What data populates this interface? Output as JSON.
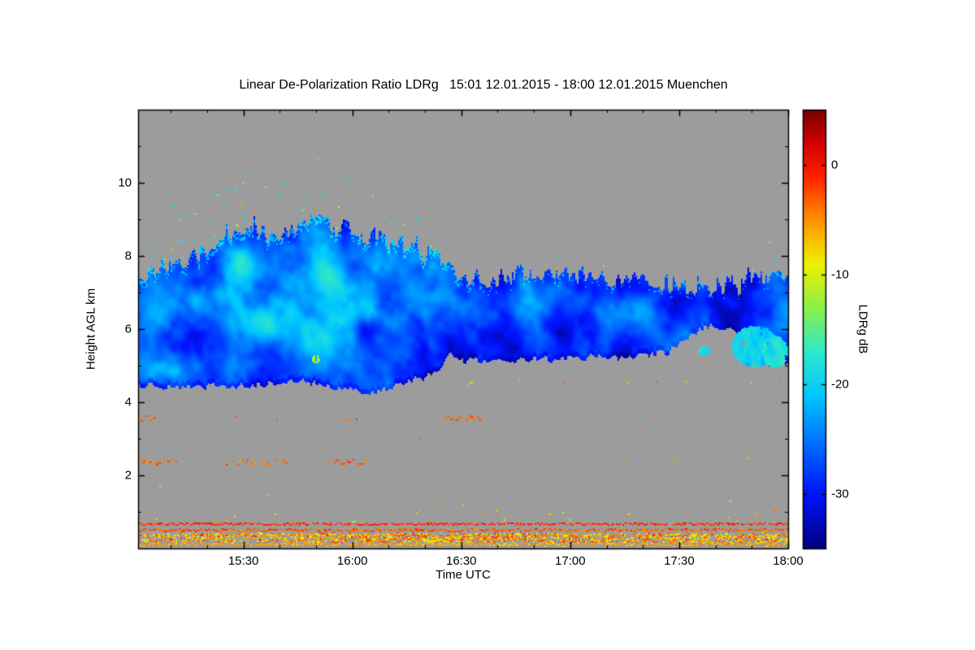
{
  "chart_data": {
    "type": "heatmap",
    "title": "Linear De-Polarization Ratio LDRg   15:01 12.01.2015 - 18:00 12.01.2015 Muenchen",
    "xlabel": "Time UTC",
    "ylabel": "Height AGL km",
    "x_ticks": [
      "15:30",
      "16:00",
      "16:30",
      "17:00",
      "17:30",
      "18:00"
    ],
    "x_ticks_minutes": [
      930,
      960,
      990,
      1020,
      1050,
      1080
    ],
    "x_start_minute": 901,
    "x_end_minute": 1080,
    "y_ticks": [
      2,
      4,
      6,
      8,
      10
    ],
    "ylim": [
      0,
      12
    ],
    "grid": false,
    "background_color": "#9c9c9c",
    "colorbar": {
      "label": "LDRg dB",
      "ticks": [
        0,
        -10,
        -20,
        -30
      ],
      "range": [
        -35,
        5
      ],
      "stops": [
        [
          -35,
          "#000082"
        ],
        [
          -30,
          "#0014ff"
        ],
        [
          -26,
          "#0064ff"
        ],
        [
          -21,
          "#00c8ff"
        ],
        [
          -17,
          "#30e8c8"
        ],
        [
          -13,
          "#8cf046"
        ],
        [
          -9,
          "#f0f000"
        ],
        [
          -5,
          "#ff9000"
        ],
        [
          -1,
          "#ff2000"
        ],
        [
          2,
          "#d20000"
        ],
        [
          5,
          "#780000"
        ]
      ]
    },
    "features": {
      "cloud": {
        "description": "Ice cloud layer 4.4-9 km, LDRg mostly -33 to -24 dB (blue) with cyan streaks near -19 dB",
        "mean_ldr_db": -28.5,
        "texture_amplitude_db": 7,
        "value_clamp_db": [
          -34,
          -15
        ],
        "top_profile_km": [
          [
            0,
            7.35
          ],
          [
            8,
            7.7
          ],
          [
            16,
            8.0
          ],
          [
            24,
            8.35
          ],
          [
            32,
            8.55
          ],
          [
            40,
            8.65
          ],
          [
            48,
            8.9
          ],
          [
            56,
            8.7
          ],
          [
            62,
            8.55
          ],
          [
            70,
            8.35
          ],
          [
            78,
            8.1
          ],
          [
            84,
            7.8
          ],
          [
            90,
            7.45
          ],
          [
            96,
            7.3
          ],
          [
            104,
            7.45
          ],
          [
            112,
            7.35
          ],
          [
            120,
            7.45
          ],
          [
            128,
            7.3
          ],
          [
            136,
            7.35
          ],
          [
            144,
            7.2
          ],
          [
            152,
            7.15
          ],
          [
            160,
            7.1
          ],
          [
            168,
            7.2
          ],
          [
            174,
            7.35
          ],
          [
            179,
            7.4
          ]
        ],
        "base_profile_km": [
          [
            0,
            4.45
          ],
          [
            10,
            4.4
          ],
          [
            20,
            4.42
          ],
          [
            30,
            4.45
          ],
          [
            40,
            4.5
          ],
          [
            46,
            4.55
          ],
          [
            52,
            4.4
          ],
          [
            58,
            4.35
          ],
          [
            62,
            4.25
          ],
          [
            66,
            4.3
          ],
          [
            72,
            4.5
          ],
          [
            78,
            4.65
          ],
          [
            82,
            4.75
          ],
          [
            86,
            5.3
          ],
          [
            89,
            5.1
          ],
          [
            94,
            5.15
          ],
          [
            100,
            5.1
          ],
          [
            108,
            5.18
          ],
          [
            116,
            5.15
          ],
          [
            124,
            5.22
          ],
          [
            132,
            5.2
          ],
          [
            140,
            5.28
          ],
          [
            146,
            5.35
          ],
          [
            152,
            5.85
          ],
          [
            158,
            6.1
          ],
          [
            163,
            6.0
          ],
          [
            167,
            5.75
          ],
          [
            170,
            5.2
          ],
          [
            174,
            5.05
          ],
          [
            179,
            5.1
          ]
        ],
        "bright_patches": [
          [
            3,
            6.0,
            6,
            1.0,
            6
          ],
          [
            4,
            4.9,
            5,
            0.5,
            5
          ],
          [
            30,
            7.8,
            9,
            0.7,
            4.5
          ],
          [
            38,
            6.4,
            20,
            1.3,
            5
          ],
          [
            40,
            6.5,
            38,
            1.8,
            2
          ],
          [
            48,
            5.6,
            10,
            0.7,
            3.5
          ],
          [
            55,
            7.4,
            12,
            0.9,
            4.5
          ],
          [
            68,
            7.9,
            7,
            0.5,
            4
          ],
          [
            75,
            6.2,
            9,
            0.9,
            3.5
          ],
          [
            90,
            6.9,
            8,
            0.8,
            2.5
          ],
          [
            118,
            6.7,
            22,
            0.6,
            2.2
          ],
          [
            171,
            5.55,
            7,
            0.5,
            7
          ]
        ],
        "top_fringe": {
          "prob_early": 0.45,
          "prob_late": 0.15,
          "switch_min": 95,
          "boost_db": 5.5
        },
        "above_top_specks": {
          "prob": [
            [
              0,
              20,
              0.22
            ],
            [
              20,
              60,
              0.38
            ],
            [
              60,
              90,
              0.22
            ],
            [
              90,
              179,
              0.07
            ]
          ],
          "max_offset_km": 1.4
        }
      },
      "islands": [
        [
          49,
          5.15,
          1.0,
          0.1,
          -12
        ],
        [
          156,
          5.38,
          1.5,
          0.13,
          -19
        ],
        [
          170,
          5.5,
          6.5,
          0.55,
          -20
        ],
        [
          175.5,
          5.35,
          3.5,
          0.42,
          -18
        ]
      ],
      "speckle_layers": [
        {
          "name": "surface-clutter-line",
          "h": [
            0.04,
            0.12
          ],
          "density": 0.99,
          "v": [
            -8,
            -4
          ]
        },
        {
          "name": "boundary-layer-aerosol-band",
          "h": [
            0.13,
            0.38
          ],
          "multi": true,
          "density": 1,
          "v": [
            -11,
            -1
          ]
        },
        {
          "name": "interference-line-0.45km",
          "h": [
            0.43,
            0.5
          ],
          "density": 0.93,
          "v": [
            -5,
            -1
          ]
        },
        {
          "name": "interference-line-0.62km",
          "h": [
            0.6,
            0.66
          ],
          "density": 0.9,
          "v": [
            -3,
            0
          ]
        },
        {
          "name": "sparse-specks-0.7-1.0km",
          "h": [
            0.68,
            1.0
          ],
          "density": 0.05,
          "v": [
            -11,
            -3
          ]
        },
        {
          "name": "sparse-specks-1-2km",
          "h": [
            1.05,
            1.95
          ],
          "density": 0.02,
          "v": [
            -13,
            -3
          ],
          "clusters": [
            [
              78,
              96,
              0.07
            ],
            [
              140,
              166,
              0.05
            ]
          ]
        },
        {
          "name": "insect-row-2.3km",
          "h": [
            2.25,
            2.4
          ],
          "density": 0.02,
          "v": [
            -6,
            -1
          ],
          "clusters": [
            [
              1,
              11,
              0.85
            ],
            [
              24,
              41,
              0.5
            ],
            [
              54,
              64,
              0.8
            ]
          ]
        },
        {
          "name": "insect-row-3.5km",
          "h": [
            3.45,
            3.6
          ],
          "density": 0.02,
          "v": [
            -5,
            -1
          ],
          "clusters": [
            [
              0,
              5,
              0.45
            ],
            [
              57,
              61,
              0.35
            ],
            [
              84,
              95,
              0.75
            ]
          ]
        },
        {
          "name": "specks-4.5km",
          "h": [
            4.4,
            4.6
          ],
          "density": 0.05,
          "v": [
            -8,
            -2
          ],
          "t_range": [
            88,
            179
          ]
        },
        {
          "name": "stray-dots",
          "h": [
            0.8,
            4.3
          ],
          "density": 0.007,
          "v": [
            -12,
            -2
          ]
        }
      ]
    }
  }
}
